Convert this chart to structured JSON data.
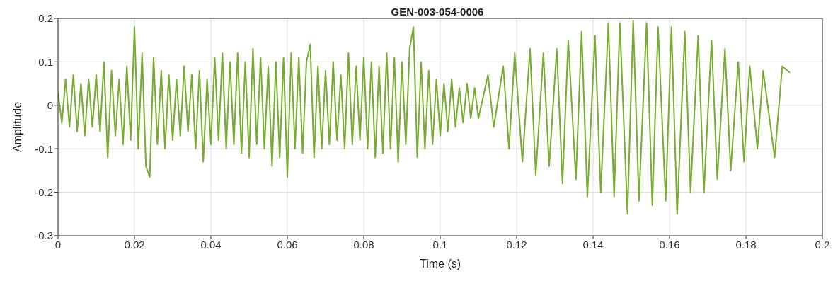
{
  "chart_data": {
    "type": "line",
    "title": "GEN-003-054-0006",
    "xlabel": "Time (s)",
    "ylabel": "Amplitude",
    "x": [
      0,
      0.001,
      0.002,
      0.003,
      0.004,
      0.005,
      0.006,
      0.007,
      0.008,
      0.009,
      0.01,
      0.011,
      0.012,
      0.013,
      0.014,
      0.015,
      0.016,
      0.017,
      0.018,
      0.019,
      0.02,
      0.021,
      0.022,
      0.023,
      0.024,
      0.025,
      0.026,
      0.027,
      0.028,
      0.029,
      0.03,
      0.031,
      0.032,
      0.033,
      0.034,
      0.035,
      0.036,
      0.037,
      0.038,
      0.039,
      0.04,
      0.041,
      0.042,
      0.043,
      0.044,
      0.045,
      0.046,
      0.047,
      0.048,
      0.049,
      0.05,
      0.051,
      0.052,
      0.053,
      0.054,
      0.055,
      0.056,
      0.057,
      0.058,
      0.059,
      0.06,
      0.061,
      0.062,
      0.063,
      0.064,
      0.065,
      0.066,
      0.067,
      0.068,
      0.069,
      0.07,
      0.071,
      0.072,
      0.073,
      0.074,
      0.075,
      0.076,
      0.077,
      0.078,
      0.079,
      0.08,
      0.081,
      0.082,
      0.083,
      0.084,
      0.085,
      0.086,
      0.087,
      0.088,
      0.089,
      0.09,
      0.091,
      0.092,
      0.093,
      0.094,
      0.095,
      0.096,
      0.097,
      0.098,
      0.099,
      0.1,
      0.101,
      0.102,
      0.103,
      0.104,
      0.105,
      0.106,
      0.107,
      0.108,
      0.109,
      0.11,
      0.1125,
      0.114,
      0.1165,
      0.118,
      0.1195,
      0.1215,
      0.1235,
      0.125,
      0.127,
      0.1285,
      0.1305,
      0.132,
      0.1335,
      0.1355,
      0.137,
      0.1385,
      0.1405,
      0.142,
      0.144,
      0.1455,
      0.147,
      0.149,
      0.1505,
      0.152,
      0.154,
      0.1555,
      0.157,
      0.159,
      0.1605,
      0.162,
      0.164,
      0.1655,
      0.1675,
      0.169,
      0.171,
      0.1725,
      0.1745,
      0.176,
      0.178,
      0.1795,
      0.181,
      0.183,
      0.1845,
      0.1875,
      0.1895,
      0.1915
    ],
    "series": [
      {
        "color": "#77ac30",
        "values": [
          0.03,
          -0.04,
          0.06,
          -0.05,
          0.07,
          -0.06,
          0.05,
          -0.07,
          0.06,
          -0.05,
          0.07,
          -0.06,
          0.1,
          -0.12,
          0.08,
          -0.07,
          0.06,
          -0.09,
          0.09,
          -0.08,
          0.18,
          -0.1,
          0.12,
          -0.14,
          -0.165,
          0.11,
          -0.09,
          0.08,
          -0.1,
          0.07,
          -0.08,
          0.06,
          -0.07,
          0.09,
          -0.06,
          0.07,
          -0.1,
          0.08,
          -0.13,
          0.06,
          -0.09,
          0.11,
          -0.08,
          0.12,
          -0.1,
          0.1,
          -0.09,
          0.12,
          -0.11,
          0.1,
          -0.12,
          0.13,
          -0.09,
          0.11,
          -0.1,
          0.09,
          -0.14,
          0.1,
          -0.12,
          0.11,
          -0.165,
          0.12,
          -0.1,
          0.11,
          -0.11,
          0.1,
          0.14,
          -0.12,
          0.09,
          -0.1,
          0.08,
          -0.09,
          0.1,
          -0.08,
          0.07,
          -0.1,
          0.12,
          -0.09,
          0.09,
          -0.08,
          0.11,
          -0.1,
          0.1,
          -0.12,
          0.09,
          -0.11,
          0.12,
          -0.1,
          0.11,
          -0.13,
          0.1,
          -0.09,
          0.13,
          0.18,
          -0.12,
          0.1,
          -0.1,
          0.08,
          -0.09,
          0.06,
          -0.07,
          0.05,
          -0.06,
          0.06,
          -0.05,
          0.04,
          -0.04,
          0.05,
          -0.03,
          0.04,
          -0.03,
          0.07,
          -0.05,
          0.09,
          -0.1,
          0.12,
          -0.13,
          0.13,
          -0.16,
          0.12,
          -0.14,
          0.13,
          -0.18,
          0.15,
          -0.17,
          0.17,
          -0.21,
          0.16,
          -0.2,
          0.19,
          -0.21,
          0.19,
          -0.25,
          0.195,
          -0.22,
          0.19,
          -0.23,
          0.18,
          -0.22,
          0.18,
          -0.25,
          0.17,
          -0.2,
          0.16,
          -0.2,
          0.15,
          -0.17,
          0.13,
          -0.15,
          0.1,
          -0.13,
          0.09,
          -0.1,
          0.08,
          -0.12,
          0.09,
          0.075
        ]
      }
    ],
    "xlim": [
      0,
      0.2
    ],
    "xticks": [
      0,
      0.02,
      0.04,
      0.06,
      0.08,
      0.1,
      0.12,
      0.14,
      0.16,
      0.18,
      0.2
    ],
    "ylim": [
      -0.3,
      0.2
    ],
    "yticks": [
      -0.3,
      -0.2,
      -0.1,
      0,
      0.1,
      0.2
    ],
    "grid": true,
    "marker": "none",
    "line_style": "solid",
    "legend": false
  }
}
